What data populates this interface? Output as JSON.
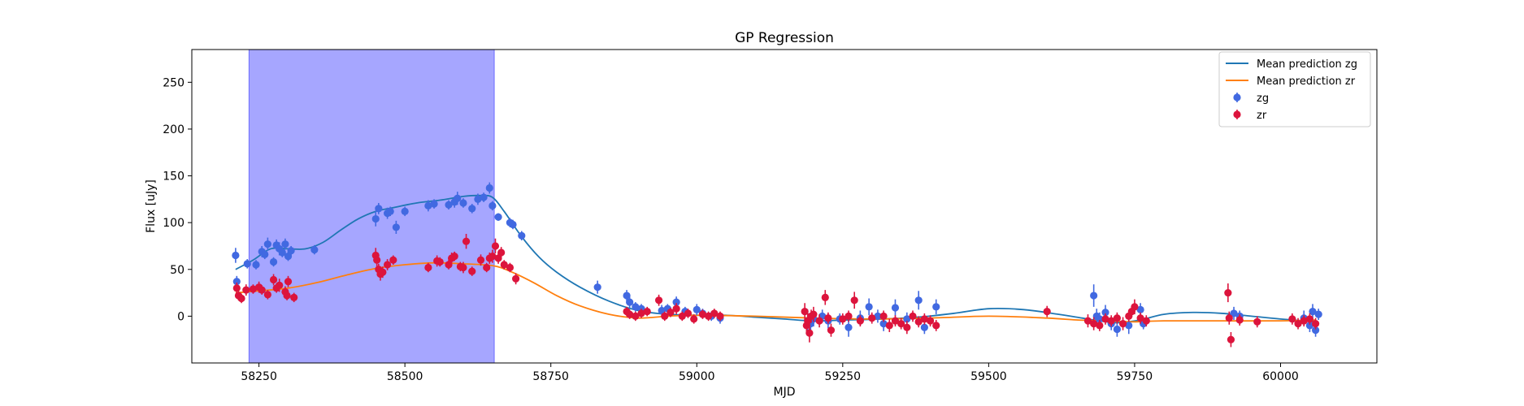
{
  "chart_data": {
    "type": "scatter",
    "title": "GP Regression",
    "xlabel": "MJD",
    "ylabel": "Flux [uJy]",
    "xlim": [
      58135,
      60165
    ],
    "ylim": [
      -50,
      285
    ],
    "xticks": [
      58250,
      58500,
      58750,
      59000,
      59250,
      59500,
      59750,
      60000
    ],
    "yticks": [
      0,
      50,
      100,
      150,
      200,
      250
    ],
    "legend_position": "top-right",
    "highlight_span": {
      "x": [
        58233,
        58653
      ],
      "color": "#a6a6ff"
    },
    "series": [
      {
        "name": "Mean prediction zg",
        "kind": "line",
        "color": "#1f77b4",
        "x": [
          58210,
          58240,
          58270,
          58300,
          58330,
          58360,
          58390,
          58420,
          58450,
          58480,
          58520,
          58560,
          58600,
          58630,
          58650,
          58670,
          58700,
          58730,
          58760,
          58800,
          58850,
          58900,
          58950,
          59000,
          59050,
          59100,
          59150,
          59200,
          59260,
          59320,
          59380,
          59440,
          59500,
          59560,
          59620,
          59660,
          59690,
          59720,
          59760,
          59800,
          59850,
          59900,
          59950,
          60000,
          60060
        ],
        "y": [
          50,
          60,
          72,
          72,
          72,
          79,
          92,
          104,
          112,
          116,
          121,
          124,
          128,
          129,
          127,
          112,
          85,
          63,
          47,
          31,
          16,
          6,
          2,
          1,
          1,
          -1,
          -3,
          -5,
          -4,
          -3,
          -1,
          3,
          8,
          7,
          2,
          -2,
          -5,
          -7,
          -4,
          2,
          4,
          3,
          0,
          -3,
          -6
        ]
      },
      {
        "name": "Mean prediction zr",
        "kind": "line",
        "color": "#ff7f0e",
        "x": [
          58210,
          58250,
          58300,
          58350,
          58400,
          58450,
          58500,
          58550,
          58600,
          58650,
          58680,
          58720,
          58760,
          58800,
          58850,
          58900,
          58950,
          59000,
          59100,
          59200,
          59300,
          59400,
          59500,
          59600,
          59650,
          59700,
          59750,
          59800,
          59900,
          60000,
          60060
        ],
        "y": [
          25,
          27,
          30,
          36,
          44,
          51,
          55,
          57,
          56,
          54,
          48,
          36,
          22,
          11,
          2,
          -2,
          0,
          1,
          0,
          -2,
          -3,
          -2,
          0,
          -2,
          -4,
          -5,
          -6,
          -5,
          -5,
          -5,
          -4
        ]
      },
      {
        "name": "zg",
        "kind": "errorbar",
        "color": "#4169e1",
        "x": [
          58210,
          58212,
          58230,
          58245,
          58255,
          58260,
          58265,
          58275,
          58280,
          58285,
          58290,
          58295,
          58300,
          58305,
          58345,
          58450,
          58455,
          58470,
          58475,
          58485,
          58500,
          58540,
          58550,
          58575,
          58585,
          58590,
          58600,
          58615,
          58625,
          58635,
          58645,
          58650,
          58660,
          58680,
          58685,
          58700,
          58830,
          58880,
          58885,
          58895,
          58905,
          58940,
          58950,
          58965,
          58980,
          59000,
          59010,
          59025,
          59040,
          59190,
          59195,
          59200,
          59215,
          59225,
          59245,
          59260,
          59280,
          59295,
          59310,
          59320,
          59340,
          59360,
          59380,
          59390,
          59410,
          59680,
          59685,
          59690,
          59700,
          59710,
          59720,
          59740,
          59760,
          59765,
          59920,
          59930,
          60040,
          60050,
          60055,
          60060,
          60065
        ],
        "y": [
          65,
          37,
          56,
          55,
          69,
          66,
          77,
          58,
          76,
          72,
          68,
          77,
          64,
          70,
          71,
          104,
          115,
          110,
          112,
          95,
          112,
          118,
          120,
          119,
          122,
          126,
          121,
          115,
          125,
          127,
          137,
          118,
          106,
          100,
          98,
          86,
          31,
          22,
          15,
          10,
          8,
          6,
          8,
          15,
          5,
          7,
          3,
          0,
          -2,
          -5,
          -8,
          -3,
          0,
          -5,
          -3,
          -12,
          -2,
          10,
          0,
          -8,
          9,
          -3,
          17,
          -12,
          10,
          22,
          0,
          -3,
          4,
          -8,
          -14,
          -10,
          7,
          -8,
          3,
          0,
          -2,
          -10,
          5,
          -15,
          2
        ],
        "err": [
          8,
          6,
          5,
          5,
          6,
          5,
          7,
          5,
          6,
          7,
          5,
          6,
          5,
          5,
          5,
          8,
          6,
          6,
          5,
          7,
          5,
          6,
          5,
          5,
          6,
          7,
          5,
          5,
          6,
          5,
          6,
          5,
          4,
          5,
          5,
          5,
          7,
          6,
          6,
          5,
          5,
          6,
          5,
          6,
          5,
          6,
          5,
          5,
          6,
          12,
          10,
          8,
          7,
          8,
          6,
          10,
          8,
          9,
          7,
          8,
          9,
          7,
          10,
          7,
          8,
          12,
          8,
          7,
          8,
          7,
          8,
          9,
          7,
          6,
          7,
          6,
          8,
          7,
          8,
          7,
          6
        ]
      },
      {
        "name": "zr",
        "kind": "errorbar",
        "color": "#dc143c",
        "x": [
          58212,
          58215,
          58220,
          58228,
          58240,
          58250,
          58255,
          58265,
          58275,
          58280,
          58285,
          58295,
          58298,
          58300,
          58310,
          58450,
          58452,
          58455,
          58458,
          58462,
          58470,
          58480,
          58540,
          58555,
          58560,
          58575,
          58580,
          58585,
          58595,
          58600,
          58605,
          58615,
          58630,
          58640,
          58645,
          58650,
          58655,
          58660,
          58665,
          58670,
          58680,
          58690,
          58880,
          58885,
          58895,
          58905,
          58915,
          58935,
          58945,
          58955,
          58965,
          58975,
          58985,
          58995,
          59010,
          59020,
          59030,
          59040,
          59185,
          59188,
          59190,
          59193,
          59196,
          59200,
          59210,
          59220,
          59225,
          59230,
          59250,
          59260,
          59270,
          59280,
          59300,
          59320,
          59330,
          59340,
          59350,
          59360,
          59370,
          59380,
          59390,
          59400,
          59410,
          59600,
          59670,
          59680,
          59690,
          59700,
          59710,
          59720,
          59730,
          59740,
          59745,
          59750,
          59760,
          59770,
          59910,
          59912,
          59915,
          59930,
          59960,
          60020,
          60030,
          60040,
          60050,
          60060
        ],
        "y": [
          30,
          22,
          19,
          28,
          29,
          31,
          28,
          23,
          39,
          30,
          33,
          26,
          22,
          37,
          20,
          65,
          60,
          50,
          45,
          47,
          55,
          60,
          52,
          59,
          58,
          55,
          62,
          64,
          53,
          52,
          80,
          48,
          60,
          52,
          62,
          64,
          75,
          62,
          68,
          55,
          52,
          40,
          5,
          2,
          0,
          3,
          5,
          17,
          0,
          4,
          8,
          0,
          3,
          -3,
          2,
          0,
          3,
          0,
          5,
          -10,
          -5,
          -18,
          0,
          2,
          -5,
          20,
          -2,
          -15,
          -3,
          0,
          17,
          -5,
          -2,
          0,
          -10,
          -5,
          -8,
          -12,
          0,
          -6,
          -3,
          -5,
          -10,
          5,
          -5,
          -8,
          -10,
          -3,
          -5,
          -2,
          -8,
          0,
          5,
          10,
          -2,
          -5,
          25,
          -2,
          -25,
          -4,
          -6,
          -3,
          -8,
          -5,
          -3,
          -8
        ],
        "err": [
          6,
          5,
          5,
          6,
          5,
          6,
          5,
          5,
          6,
          5,
          7,
          6,
          5,
          6,
          5,
          8,
          7,
          6,
          7,
          6,
          6,
          5,
          5,
          6,
          5,
          5,
          6,
          5,
          5,
          6,
          8,
          5,
          6,
          5,
          6,
          7,
          8,
          6,
          6,
          5,
          5,
          6,
          5,
          5,
          5,
          5,
          5,
          6,
          5,
          5,
          6,
          5,
          5,
          5,
          5,
          5,
          5,
          5,
          9,
          8,
          8,
          10,
          7,
          8,
          7,
          8,
          6,
          7,
          6,
          6,
          9,
          6,
          6,
          6,
          7,
          6,
          6,
          7,
          6,
          6,
          6,
          6,
          6,
          6,
          7,
          7,
          6,
          6,
          6,
          6,
          7,
          6,
          6,
          8,
          6,
          6,
          10,
          7,
          8,
          6,
          6,
          6,
          6,
          6,
          6,
          6
        ]
      }
    ]
  }
}
